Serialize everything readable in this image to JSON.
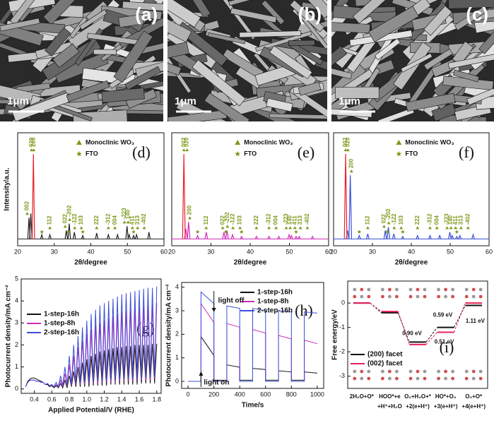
{
  "images": [
    {
      "label": "(a)",
      "scale": "1μm"
    },
    {
      "label": "(b)",
      "scale": "1μm"
    },
    {
      "label": "(c)",
      "scale": "1μm"
    }
  ],
  "chart_data": [
    {
      "type": "stick",
      "panel_label": "(d)",
      "xlabel": "2θ/degree",
      "ylabel": "Intensity/a.u.",
      "xlim": [
        20,
        60
      ],
      "xticks": [
        20,
        30,
        40,
        50,
        60
      ],
      "ylim": [
        -8,
        125
      ],
      "series": [
        {
          "color": "#222222",
          "x": [
            23.1,
            23.6,
            26.6,
            28.8,
            33.3,
            34.1,
            35.5,
            37.8,
            41.6,
            44.8,
            47.3,
            49.9,
            50.5,
            51.7,
            52.5,
            55.9
          ],
          "values": [
            25,
            30,
            5,
            5,
            10,
            18,
            8,
            4,
            7,
            5,
            5,
            15,
            5,
            4,
            5,
            8
          ]
        },
        {
          "color": "#e8202a",
          "x": [
            24.3
          ],
          "values": [
            100
          ]
        }
      ],
      "peak_labels": [
        {
          "text": "002",
          "x": 22.6
        },
        {
          "text": "020",
          "x": 23.8
        },
        {
          "text": "200",
          "x": 24.4
        },
        {
          "text": "112",
          "x": 28.8
        },
        {
          "text": "022",
          "x": 33.0
        },
        {
          "text": "-202",
          "x": 34.2
        },
        {
          "text": "-122",
          "x": 35.6
        },
        {
          "text": "103",
          "x": 37.4
        },
        {
          "text": "222",
          "x": 41.6
        },
        {
          "text": "-312",
          "x": 44.8
        },
        {
          "text": "004",
          "x": 46.6
        },
        {
          "text": "-223",
          "x": 49.2
        },
        {
          "text": "140",
          "x": 50.2
        },
        {
          "text": "411",
          "x": 51.4
        },
        {
          "text": "313",
          "x": 52.8
        },
        {
          "text": "-402",
          "x": 54.6
        }
      ],
      "fto_x": [
        26.6,
        33.8,
        37.8,
        51.7
      ],
      "symbol_legend": [
        "Monoclinic WO₃",
        "FTO"
      ],
      "marker_color": "#7a9a1a"
    },
    {
      "type": "stick",
      "panel_label": "(e)",
      "xlabel": "2θ/degree",
      "xlim": [
        20,
        60
      ],
      "xticks": [
        20,
        30,
        40,
        50,
        60
      ],
      "ylim": [
        -8,
        125
      ],
      "series": [
        {
          "color": "#d02ab8",
          "x": [
            23.6,
            24.3,
            26.6,
            28.8,
            33.3,
            34.1,
            35.5,
            37.8,
            41.6,
            44.8,
            47.3,
            49.9,
            50.5,
            51.7,
            52.5,
            55.9
          ],
          "values": [
            12,
            20,
            4,
            8,
            8,
            10,
            5,
            3,
            3,
            3,
            3,
            5,
            4,
            3,
            3,
            3
          ]
        },
        {
          "color": "#e8202a",
          "x": [
            23.1
          ],
          "values": [
            100
          ]
        }
      ],
      "peak_labels": [
        {
          "text": "002",
          "x": 23.1
        },
        {
          "text": "020",
          "x": 23.9
        },
        {
          "text": "200",
          "x": 24.6
        },
        {
          "text": "112",
          "x": 28.8
        },
        {
          "text": "022",
          "x": 33.0
        },
        {
          "text": "-202",
          "x": 34.2
        },
        {
          "text": "-122",
          "x": 35.6
        },
        {
          "text": "103",
          "x": 37.4
        },
        {
          "text": "222",
          "x": 41.6
        },
        {
          "text": "-312",
          "x": 44.8
        },
        {
          "text": "004",
          "x": 46.6
        },
        {
          "text": "-223",
          "x": 49.2
        },
        {
          "text": "140",
          "x": 50.2
        },
        {
          "text": "411",
          "x": 51.4
        },
        {
          "text": "313",
          "x": 52.8
        },
        {
          "text": "-402",
          "x": 54.6
        }
      ],
      "fto_x": [
        26.6,
        33.8,
        37.8,
        51.7
      ],
      "symbol_legend": [
        "Monoclinic WO₃",
        "FTO"
      ],
      "marker_color": "#7a9a1a"
    },
    {
      "type": "stick",
      "panel_label": "(f)",
      "xlabel": "2θ/degree",
      "xlim": [
        20,
        60
      ],
      "xticks": [
        20,
        30,
        40,
        50,
        60
      ],
      "ylim": [
        -8,
        125
      ],
      "series": [
        {
          "color": "#3a4fd8",
          "x": [
            23.6,
            24.3,
            26.6,
            28.8,
            33.3,
            34.1,
            35.5,
            37.8,
            41.6,
            44.8,
            47.3,
            49.9,
            50.5,
            51.7,
            52.5,
            55.9
          ],
          "values": [
            10,
            75,
            4,
            6,
            10,
            14,
            6,
            3,
            4,
            4,
            4,
            8,
            4,
            3,
            4,
            5
          ]
        },
        {
          "color": "#e8202a",
          "x": [
            23.1
          ],
          "values": [
            100
          ]
        }
      ],
      "peak_labels": [
        {
          "text": "002",
          "x": 23.1
        },
        {
          "text": "020",
          "x": 23.7
        },
        {
          "text": "200",
          "x": 24.6
        },
        {
          "text": "112",
          "x": 28.8
        },
        {
          "text": "022",
          "x": 33.0
        },
        {
          "text": "-202",
          "x": 34.2
        },
        {
          "text": "-122",
          "x": 35.6
        },
        {
          "text": "103",
          "x": 37.4
        },
        {
          "text": "222",
          "x": 41.6
        },
        {
          "text": "-312",
          "x": 44.8
        },
        {
          "text": "004",
          "x": 46.6
        },
        {
          "text": "-223",
          "x": 49.2
        },
        {
          "text": "140",
          "x": 50.2
        },
        {
          "text": "411",
          "x": 51.4
        },
        {
          "text": "313",
          "x": 52.8
        },
        {
          "text": "-402",
          "x": 54.6
        }
      ],
      "fto_x": [
        26.6,
        33.8,
        37.8,
        51.7
      ],
      "symbol_legend": [
        "Monoclinic WO₃",
        "FTO"
      ],
      "marker_color": "#7a9a1a"
    },
    {
      "type": "line",
      "panel_label": "(g)",
      "xlabel": "Applied Potential/V (RHE)",
      "ylabel": "Photocurrent density/mA cm⁻²",
      "xlim": [
        0.25,
        1.85
      ],
      "xticks": [
        0.4,
        0.6,
        0.8,
        {
          "value": 1,
          "label": "1.0"
        },
        1.2,
        1.4,
        1.6,
        1.8
      ],
      "ylim": [
        -0.2,
        5
      ],
      "yticks": [
        0,
        1,
        2,
        3,
        4,
        5
      ],
      "legend": "upper left",
      "x": [
        0.3,
        0.325,
        0.35,
        0.375,
        0.4,
        0.425,
        0.45,
        0.475,
        0.5,
        0.525,
        0.55,
        0.575,
        0.6,
        0.625,
        0.65,
        0.675,
        0.7,
        0.725,
        0.75,
        0.775,
        0.8,
        0.825,
        0.85,
        0.875,
        0.9,
        0.925,
        0.95,
        0.975,
        1.0,
        1.025,
        1.05,
        1.075,
        1.1,
        1.125,
        1.15,
        1.175,
        1.2,
        1.225,
        1.25,
        1.275,
        1.3,
        1.325,
        1.35,
        1.375,
        1.4,
        1.425,
        1.45,
        1.475,
        1.5,
        1.525,
        1.55,
        1.575,
        1.6,
        1.625,
        1.65,
        1.675,
        1.7,
        1.725,
        1.75,
        1.775,
        1.8
      ],
      "series": [
        {
          "name": "1-step-16h",
          "color": "#111111",
          "values": [
            0.1,
            0.35,
            0.45,
            0.5,
            0.5,
            0.45,
            0.4,
            0.35,
            0.3,
            0.2,
            0.2,
            0.1,
            0.15,
            0.05,
            0.15,
            0.05,
            0.25,
            0.05,
            0.4,
            0.05,
            0.6,
            0.1,
            0.8,
            0.1,
            1.0,
            0.1,
            1.2,
            0.1,
            1.35,
            0.1,
            1.5,
            0.15,
            1.6,
            0.15,
            1.7,
            0.15,
            1.75,
            0.15,
            1.8,
            0.2,
            1.85,
            0.2,
            1.9,
            0.2,
            1.9,
            0.2,
            1.95,
            0.2,
            1.95,
            0.2,
            2.0,
            0.2,
            2.0,
            0.25,
            2.0,
            0.25,
            2.0,
            0.25,
            2.05,
            0.25,
            2.05
          ]
        },
        {
          "name": "1-step-8h",
          "color": "#d02ab8",
          "values": [
            0.1,
            0.3,
            0.4,
            0.4,
            0.4,
            0.35,
            0.35,
            0.3,
            0.3,
            0.2,
            0.25,
            0.15,
            0.2,
            0.1,
            0.2,
            0.1,
            0.4,
            0.1,
            0.7,
            0.15,
            1.1,
            0.15,
            1.5,
            0.2,
            1.9,
            0.2,
            2.2,
            0.2,
            2.5,
            0.25,
            2.7,
            0.25,
            2.9,
            0.25,
            3.0,
            0.3,
            3.1,
            0.3,
            3.2,
            0.3,
            3.3,
            0.3,
            3.4,
            0.35,
            3.5,
            0.35,
            3.55,
            0.35,
            3.6,
            0.35,
            3.65,
            0.4,
            3.7,
            0.4,
            3.75,
            0.4,
            3.8,
            0.4,
            3.85,
            0.45,
            3.9
          ]
        },
        {
          "name": "2-step-16h",
          "color": "#3a4fd8",
          "values": [
            0.1,
            0.3,
            0.4,
            0.4,
            0.4,
            0.35,
            0.35,
            0.3,
            0.3,
            0.2,
            0.25,
            0.15,
            0.2,
            0.1,
            0.3,
            0.1,
            0.6,
            0.15,
            1.0,
            0.2,
            1.5,
            0.2,
            2.0,
            0.25,
            2.4,
            0.25,
            2.8,
            0.3,
            3.1,
            0.3,
            3.4,
            0.3,
            3.6,
            0.35,
            3.8,
            0.35,
            3.9,
            0.35,
            4.0,
            0.4,
            4.1,
            0.4,
            4.2,
            0.4,
            4.3,
            0.45,
            4.35,
            0.45,
            4.4,
            0.45,
            4.45,
            0.5,
            4.5,
            0.5,
            4.55,
            0.5,
            4.6,
            0.5,
            4.6,
            0.55,
            4.65
          ]
        }
      ]
    },
    {
      "type": "line",
      "panel_label": "(h)",
      "xlabel": "Time/s",
      "ylabel": "Photocurrent density/mA cm⁻²",
      "xlim": [
        -50,
        1050
      ],
      "xticks": [
        0,
        200,
        400,
        600,
        800,
        1000
      ],
      "ylim": [
        -0.3,
        4.2
      ],
      "yticks": [
        0,
        1,
        2,
        3,
        4
      ],
      "legend": "upper right",
      "annotations": [
        "light off",
        "light on"
      ],
      "x": [
        0,
        100,
        100,
        200,
        200,
        300,
        300,
        400,
        400,
        500,
        500,
        600,
        600,
        700,
        700,
        800,
        800,
        900,
        900,
        1000
      ],
      "series": [
        {
          "name": "1-step-16h",
          "color": "#111111",
          "values": [
            0,
            0,
            1.9,
            1.1,
            0.05,
            0.05,
            0.7,
            0.6,
            0.05,
            0.05,
            0.55,
            0.5,
            0.05,
            0.05,
            0.45,
            0.4,
            0.05,
            0.05,
            0.4,
            0.35
          ]
        },
        {
          "name": "1-step-8h",
          "color": "#d02ab8",
          "values": [
            0,
            0,
            3.3,
            2.5,
            0,
            0,
            2.45,
            2.3,
            0,
            0,
            2.2,
            2.05,
            0,
            0,
            1.95,
            1.8,
            0,
            0,
            1.75,
            1.6
          ]
        },
        {
          "name": "2-step-16h",
          "color": "#3a4fd8",
          "values": [
            0,
            0,
            3.8,
            3.3,
            0,
            0,
            3.2,
            3.1,
            0,
            0,
            3.1,
            3.0,
            0,
            0,
            3.0,
            2.95,
            0,
            0,
            2.95,
            2.9
          ]
        }
      ]
    },
    {
      "type": "step",
      "panel_label": "(i)",
      "ylabel": "Free energy/eV",
      "ylim": [
        -3.5,
        0.9
      ],
      "yticks": [
        0,
        -1,
        -2,
        -3
      ],
      "legend": "lower left",
      "categories": [
        [
          "2H₂O+O*"
        ],
        [
          "HOO*+e",
          "+H⁺+H₂O"
        ],
        [
          "O₂+H₂O+*",
          "+2(e+H⁺)"
        ],
        [
          "HO*+O₂",
          "+3(e+H⁺)"
        ],
        [
          "O₂+O*",
          "+4(e+H⁺)"
        ]
      ],
      "annotations": [
        "0.90 eV",
        "0.59 eV",
        "0.51 eV",
        "1.11 eV"
      ],
      "series": [
        {
          "name": "(200) facet",
          "color": "#111111",
          "values": [
            0,
            -0.4,
            -1.6,
            -1.0,
            -0.1
          ]
        },
        {
          "name": "(002) facet",
          "color": "#e8205a",
          "values": [
            0,
            -0.35,
            -1.7,
            -1.2,
            0
          ]
        }
      ]
    }
  ]
}
